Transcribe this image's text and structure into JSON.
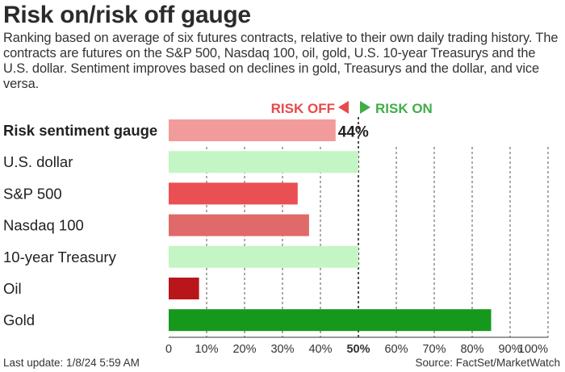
{
  "title": "Risk on/risk off gauge",
  "subtitle": "Ranking based on average of six futures contracts, relative to their own daily trading history. The contracts are futures on the S&P 500, Nasdaq 100, oil, gold, U.S. 10-year Treasurys and the U.S. dollar. Sentiment improves based on declines in gold, Treasurys and the dollar, and vice versa.",
  "footer": {
    "last_update": "Last update: 1/8/24 5:59 AM",
    "source": "Source: FactSet/MarketWatch"
  },
  "legend": {
    "risk_off": "RISK OFF",
    "risk_on": "RISK ON",
    "risk_off_color": "#e8494b",
    "risk_on_color": "#3fae49"
  },
  "chart_data": {
    "type": "bar",
    "orientation": "horizontal",
    "x_ticks": [
      "0",
      "10%",
      "20%",
      "30%",
      "40%",
      "50%",
      "60%",
      "70%",
      "80%",
      "90%",
      "100%"
    ],
    "xlim": [
      0,
      100
    ],
    "midline": 50,
    "grid": true,
    "categories": [
      "Risk sentiment gauge",
      "U.S. dollar",
      "S&P 500",
      "Nasdaq 100",
      "10-year Treasury",
      "Oil",
      "Gold"
    ],
    "values": [
      44,
      50,
      34,
      37,
      50,
      8,
      85
    ],
    "colors": [
      "#f29b9b",
      "#c4f5c4",
      "#ea4f53",
      "#e06a6a",
      "#c4f5c4",
      "#b8161a",
      "#16981c"
    ],
    "value_labels": [
      "44%",
      "",
      "",
      "",
      "",
      "",
      ""
    ],
    "bold_categories": [
      true,
      false,
      false,
      false,
      false,
      false,
      false
    ]
  }
}
